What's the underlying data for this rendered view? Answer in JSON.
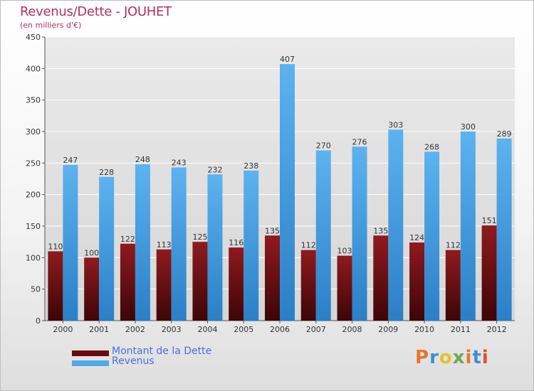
{
  "title": "Revenus/Dette - JOUHET",
  "subtitle": "(en milliers d'€)",
  "logo_text": "Proxiti",
  "colors": {
    "title": "#b0325c",
    "dette": "#7a0f12",
    "revenus": "#4fa8e8",
    "legend_text": "#4f6ce0",
    "grid": "#ffffff",
    "axis_text": "#333333"
  },
  "legend": [
    {
      "label": "Montant de la Dette",
      "color": "#6e0a0e"
    },
    {
      "label": "Revenus",
      "color": "#4fa8e8"
    }
  ],
  "chart_data": {
    "type": "bar",
    "categories": [
      "2000",
      "2001",
      "2002",
      "2003",
      "2004",
      "2005",
      "2006",
      "2007",
      "2008",
      "2009",
      "2010",
      "2011",
      "2012"
    ],
    "series": [
      {
        "name": "Montant de la Dette",
        "values": [
          110,
          100,
          122,
          113,
          125,
          116,
          135,
          112,
          103,
          135,
          124,
          112,
          151
        ]
      },
      {
        "name": "Revenus",
        "values": [
          247,
          228,
          248,
          243,
          232,
          238,
          407,
          270,
          276,
          303,
          268,
          300,
          289
        ]
      }
    ],
    "ylim": [
      0,
      450
    ],
    "yticks": [
      0,
      50,
      100,
      150,
      200,
      250,
      300,
      350,
      400,
      450
    ],
    "grid": true,
    "legend_position": "bottom-left"
  }
}
